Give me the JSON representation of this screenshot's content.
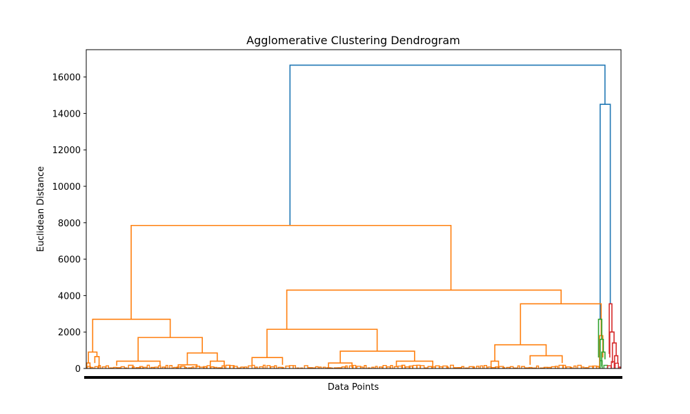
{
  "chart_data": {
    "type": "dendrogram",
    "title": "Agglomerative Clustering Dendrogram",
    "xlabel": "Data Points",
    "ylabel": "Euclidean Distance",
    "ylim": [
      0,
      17500
    ],
    "yticks": [
      0,
      2000,
      4000,
      6000,
      8000,
      10000,
      12000,
      14000,
      16000
    ],
    "ytick_labels": [
      "0",
      "2000",
      "4000",
      "6000",
      "8000",
      "10000",
      "12000",
      "14000",
      "16000"
    ],
    "xlim": [
      0,
      1000
    ],
    "colors": {
      "root": "#1f77b4",
      "cluster_1": "#ff7f0e",
      "cluster_2": "#2ca02c",
      "cluster_3": "#d62728"
    },
    "merges": [
      {
        "name": "root-merge",
        "left": 381,
        "right": 970,
        "left_h": 7850,
        "right_h": 14500,
        "h": 16650,
        "color": "root"
      },
      {
        "name": "sub-root-merge",
        "left": 961,
        "right": 980,
        "left_h": 2700,
        "right_h": 3550,
        "h": 14500,
        "color": "root"
      },
      {
        "name": "c1-top",
        "left": 84,
        "right": 682,
        "left_h": 2700,
        "right_h": 4300,
        "h": 7850,
        "color": "cluster_1"
      },
      {
        "name": "c1-left",
        "left": 12,
        "right": 157,
        "left_h": 900,
        "right_h": 1700,
        "h": 2700,
        "color": "cluster_1"
      },
      {
        "name": "c1-left-a",
        "left": 4,
        "right": 20,
        "left_h": 300,
        "right_h": 650,
        "h": 900,
        "color": "cluster_1"
      },
      {
        "name": "c1-left-a1",
        "left": 1,
        "right": 7,
        "left_h": 0,
        "right_h": 0,
        "h": 300,
        "color": "cluster_1"
      },
      {
        "name": "c1-left-a2",
        "left": 16,
        "right": 24,
        "left_h": 300,
        "right_h": 50,
        "h": 650,
        "color": "cluster_1"
      },
      {
        "name": "c1-left-b",
        "left": 97,
        "right": 217,
        "left_h": 400,
        "right_h": 850,
        "h": 1700,
        "color": "cluster_1"
      },
      {
        "name": "c1-left-b1",
        "left": 57,
        "right": 138,
        "left_h": 150,
        "right_h": 100,
        "h": 400,
        "color": "cluster_1"
      },
      {
        "name": "c1-left-b2",
        "left": 189,
        "right": 245,
        "left_h": 200,
        "right_h": 400,
        "h": 850,
        "color": "cluster_1"
      },
      {
        "name": "c1-left-b2a",
        "left": 172,
        "right": 207,
        "left_h": 0,
        "right_h": 50,
        "h": 200,
        "color": "cluster_1"
      },
      {
        "name": "c1-left-b2b",
        "left": 232,
        "right": 258,
        "left_h": 100,
        "right_h": 50,
        "h": 400,
        "color": "cluster_1"
      },
      {
        "name": "c1-right",
        "left": 375,
        "right": 888,
        "left_h": 2150,
        "right_h": 3550,
        "h": 4300,
        "color": "cluster_1"
      },
      {
        "name": "c1-mid",
        "left": 338,
        "right": 544,
        "left_h": 600,
        "right_h": 950,
        "h": 2150,
        "color": "cluster_1"
      },
      {
        "name": "c1-mid-a",
        "left": 310,
        "right": 367,
        "left_h": 100,
        "right_h": 200,
        "h": 600,
        "color": "cluster_1"
      },
      {
        "name": "c1-mid-b",
        "left": 475,
        "right": 614,
        "left_h": 300,
        "right_h": 400,
        "h": 950,
        "color": "cluster_1"
      },
      {
        "name": "c1-mid-b1",
        "left": 453,
        "right": 497,
        "left_h": 50,
        "right_h": 50,
        "h": 300,
        "color": "cluster_1"
      },
      {
        "name": "c1-mid-b2",
        "left": 580,
        "right": 648,
        "left_h": 100,
        "right_h": 50,
        "h": 400,
        "color": "cluster_1"
      },
      {
        "name": "c1-far",
        "left": 812,
        "right": 963,
        "left_h": 1300,
        "right_h": 1800,
        "h": 3550,
        "color": "cluster_1"
      },
      {
        "name": "c1-far-a",
        "left": 764,
        "right": 860,
        "left_h": 400,
        "right_h": 700,
        "h": 1300,
        "color": "cluster_1"
      },
      {
        "name": "c1-far-a1",
        "left": 757,
        "right": 771,
        "left_h": 0,
        "right_h": 0,
        "h": 400,
        "color": "cluster_1"
      },
      {
        "name": "c1-far-a2",
        "left": 830,
        "right": 890,
        "left_h": 200,
        "right_h": 300,
        "h": 700,
        "color": "cluster_1"
      },
      {
        "name": "c1-far-b",
        "left": 960,
        "right": 966,
        "left_h": 0,
        "right_h": 600,
        "h": 1800,
        "color": "cluster_1"
      },
      {
        "name": "c2-top",
        "left": 958,
        "right": 964,
        "left_h": 600,
        "right_h": 1600,
        "h": 2700,
        "color": "cluster_2"
      },
      {
        "name": "c2-a",
        "left": 961,
        "right": 967,
        "left_h": 400,
        "right_h": 900,
        "h": 1600,
        "color": "cluster_2"
      },
      {
        "name": "c2-b",
        "left": 964,
        "right": 970,
        "left_h": 100,
        "right_h": 500,
        "h": 900,
        "color": "cluster_2"
      },
      {
        "name": "c3-top",
        "left": 978,
        "right": 983,
        "left_h": 800,
        "right_h": 2000,
        "h": 3550,
        "color": "cluster_3"
      },
      {
        "name": "c3-a",
        "left": 979,
        "right": 987,
        "left_h": 600,
        "right_h": 1400,
        "h": 2000,
        "color": "cluster_3"
      },
      {
        "name": "c3-b",
        "left": 984,
        "right": 991,
        "left_h": 300,
        "right_h": 700,
        "h": 1400,
        "color": "cluster_3"
      },
      {
        "name": "c3-c",
        "left": 988,
        "right": 994,
        "left_h": 100,
        "right_h": 300,
        "h": 700,
        "color": "cluster_3"
      }
    ]
  }
}
